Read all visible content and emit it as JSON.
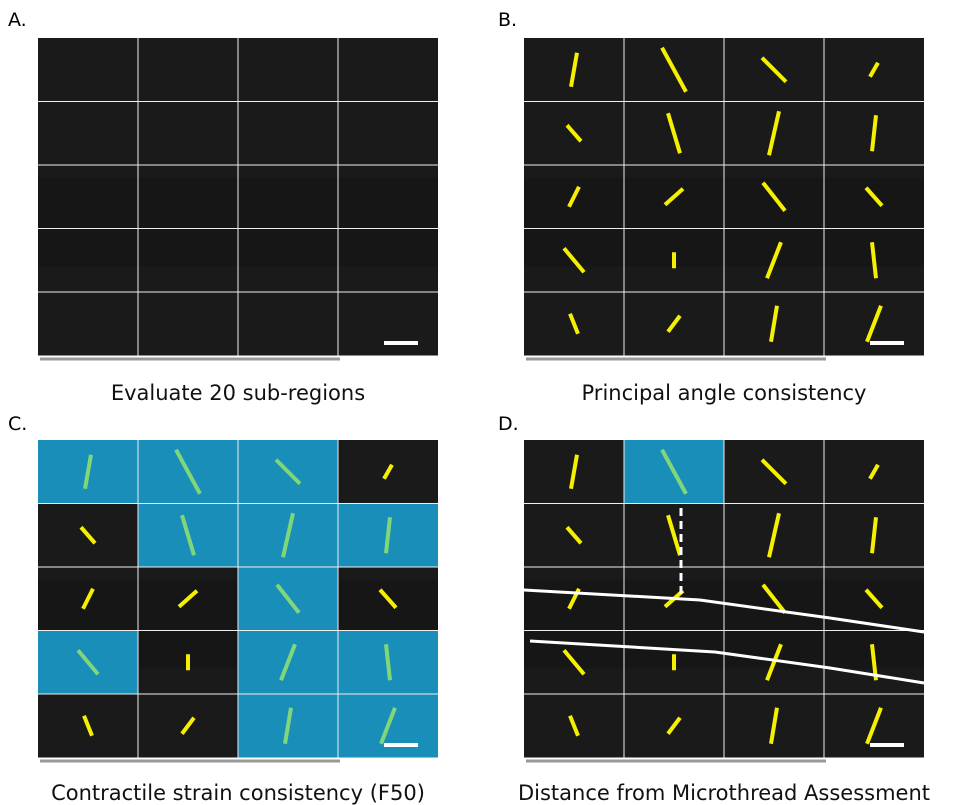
{
  "panels": [
    {
      "label": "A.",
      "caption": "Evaluate 20 sub-regions"
    },
    {
      "label": "B.",
      "caption": "Principal angle consistency"
    },
    {
      "label": "C.",
      "caption": "Contractile strain consistency (F50)"
    },
    {
      "label": "D.",
      "caption": "Distance from Microthread Assessment"
    }
  ]
}
